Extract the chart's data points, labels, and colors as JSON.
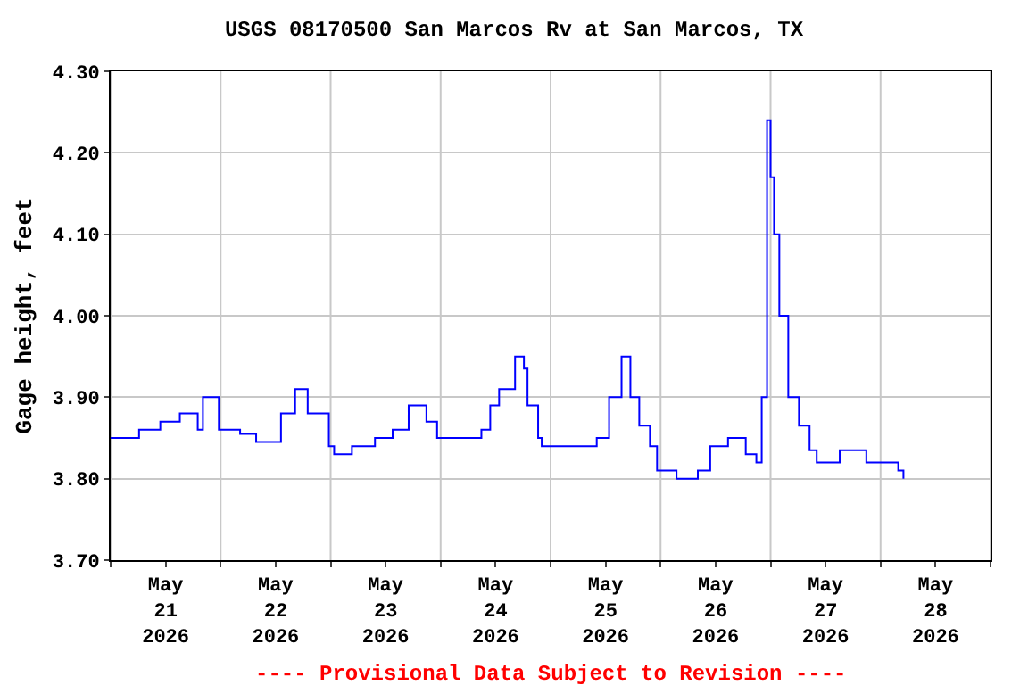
{
  "chart_data": {
    "type": "step",
    "title": "USGS 08170500 San Marcos Rv at San Marcos, TX",
    "ylabel": "Gage height, feet",
    "annotations": [
      "---- Provisional Data Subject to Revision ----"
    ],
    "x": [
      "2026-05-21T00:00",
      "2026-05-21T06:12",
      "2026-05-21T10:50",
      "2026-05-21T15:06",
      "2026-05-21T19:00",
      "2026-05-21T20:08",
      "2026-05-21T23:37",
      "2026-05-22T04:15",
      "2026-05-22T07:45",
      "2026-05-22T13:10",
      "2026-05-22T16:15",
      "2026-05-22T19:00",
      "2026-05-22T23:37",
      "2026-05-23T00:46",
      "2026-05-23T04:39",
      "2026-05-23T09:41",
      "2026-05-23T13:32",
      "2026-05-23T17:02",
      "2026-05-23T20:54",
      "2026-05-23T23:14",
      "2026-05-24T06:35",
      "2026-05-24T08:54",
      "2026-05-24T10:50",
      "2026-05-24T12:46",
      "2026-05-24T16:15",
      "2026-05-24T18:11",
      "2026-05-24T18:58",
      "2026-05-24T21:17",
      "2026-05-24T22:04",
      "2026-05-25T08:54",
      "2026-05-25T10:04",
      "2026-05-25T12:46",
      "2026-05-25T15:29",
      "2026-05-25T17:25",
      "2026-05-25T19:21",
      "2026-05-25T21:41",
      "2026-05-25T23:14",
      "2026-05-26T03:29",
      "2026-05-26T08:08",
      "2026-05-26T10:50",
      "2026-05-26T14:43",
      "2026-05-26T18:35",
      "2026-05-26T20:54",
      "2026-05-26T22:04",
      "2026-05-26T23:14",
      "2026-05-27T00:00",
      "2026-05-27T00:46",
      "2026-05-27T01:55",
      "2026-05-27T03:52",
      "2026-05-27T06:12",
      "2026-05-27T08:31",
      "2026-05-27T10:04",
      "2026-05-27T15:06",
      "2026-05-27T18:58",
      "2026-05-27T20:54",
      "2026-05-28T03:52",
      "2026-05-28T05:00"
    ],
    "series": [
      {
        "color": "#0000ff",
        "values": [
          3.85,
          3.86,
          3.87,
          3.88,
          3.86,
          3.9,
          3.86,
          3.855,
          3.845,
          3.88,
          3.91,
          3.88,
          3.84,
          3.83,
          3.84,
          3.85,
          3.86,
          3.89,
          3.87,
          3.85,
          3.85,
          3.86,
          3.89,
          3.91,
          3.95,
          3.935,
          3.89,
          3.85,
          3.84,
          3.84,
          3.85,
          3.9,
          3.95,
          3.9,
          3.865,
          3.84,
          3.81,
          3.8,
          3.81,
          3.84,
          3.85,
          3.83,
          3.82,
          3.9,
          4.24,
          4.17,
          4.1,
          4.0,
          3.9,
          3.865,
          3.835,
          3.82,
          3.835,
          3.835,
          3.82,
          3.81,
          3.8
        ]
      }
    ],
    "xlim": [
      "2026-05-21T00:00",
      "2026-05-29T00:00"
    ],
    "xticks": [
      {
        "value": "2026-05-21T00:00",
        "label": null
      },
      {
        "value": "2026-05-21T12:00",
        "label": "May\n21\n2026"
      },
      {
        "value": "2026-05-22T00:00",
        "label": null
      },
      {
        "value": "2026-05-22T12:00",
        "label": "May\n22\n2026"
      },
      {
        "value": "2026-05-23T00:00",
        "label": null
      },
      {
        "value": "2026-05-23T12:00",
        "label": "May\n23\n2026"
      },
      {
        "value": "2026-05-24T00:00",
        "label": null
      },
      {
        "value": "2026-05-24T12:00",
        "label": "May\n24\n2026"
      },
      {
        "value": "2026-05-25T00:00",
        "label": null
      },
      {
        "value": "2026-05-25T12:00",
        "label": "May\n25\n2026"
      },
      {
        "value": "2026-05-26T00:00",
        "label": null
      },
      {
        "value": "2026-05-26T12:00",
        "label": "May\n26\n2026"
      },
      {
        "value": "2026-05-27T00:00",
        "label": null
      },
      {
        "value": "2026-05-27T12:00",
        "label": "May\n27\n2026"
      },
      {
        "value": "2026-05-28T00:00",
        "label": null
      },
      {
        "value": "2026-05-28T12:00",
        "label": "May\n28\n2026"
      },
      {
        "value": "2026-05-29T00:00",
        "label": null
      }
    ],
    "ylim": [
      3.7,
      4.3
    ],
    "yticks": [
      {
        "value": 3.7,
        "label": "3.70"
      },
      {
        "value": 3.8,
        "label": "3.80"
      },
      {
        "value": 3.9,
        "label": "3.90"
      },
      {
        "value": 4.0,
        "label": "4.00"
      },
      {
        "value": 4.1,
        "label": "4.10"
      },
      {
        "value": 4.2,
        "label": "4.20"
      },
      {
        "value": 4.3,
        "label": "4.30"
      }
    ],
    "grid": true
  }
}
